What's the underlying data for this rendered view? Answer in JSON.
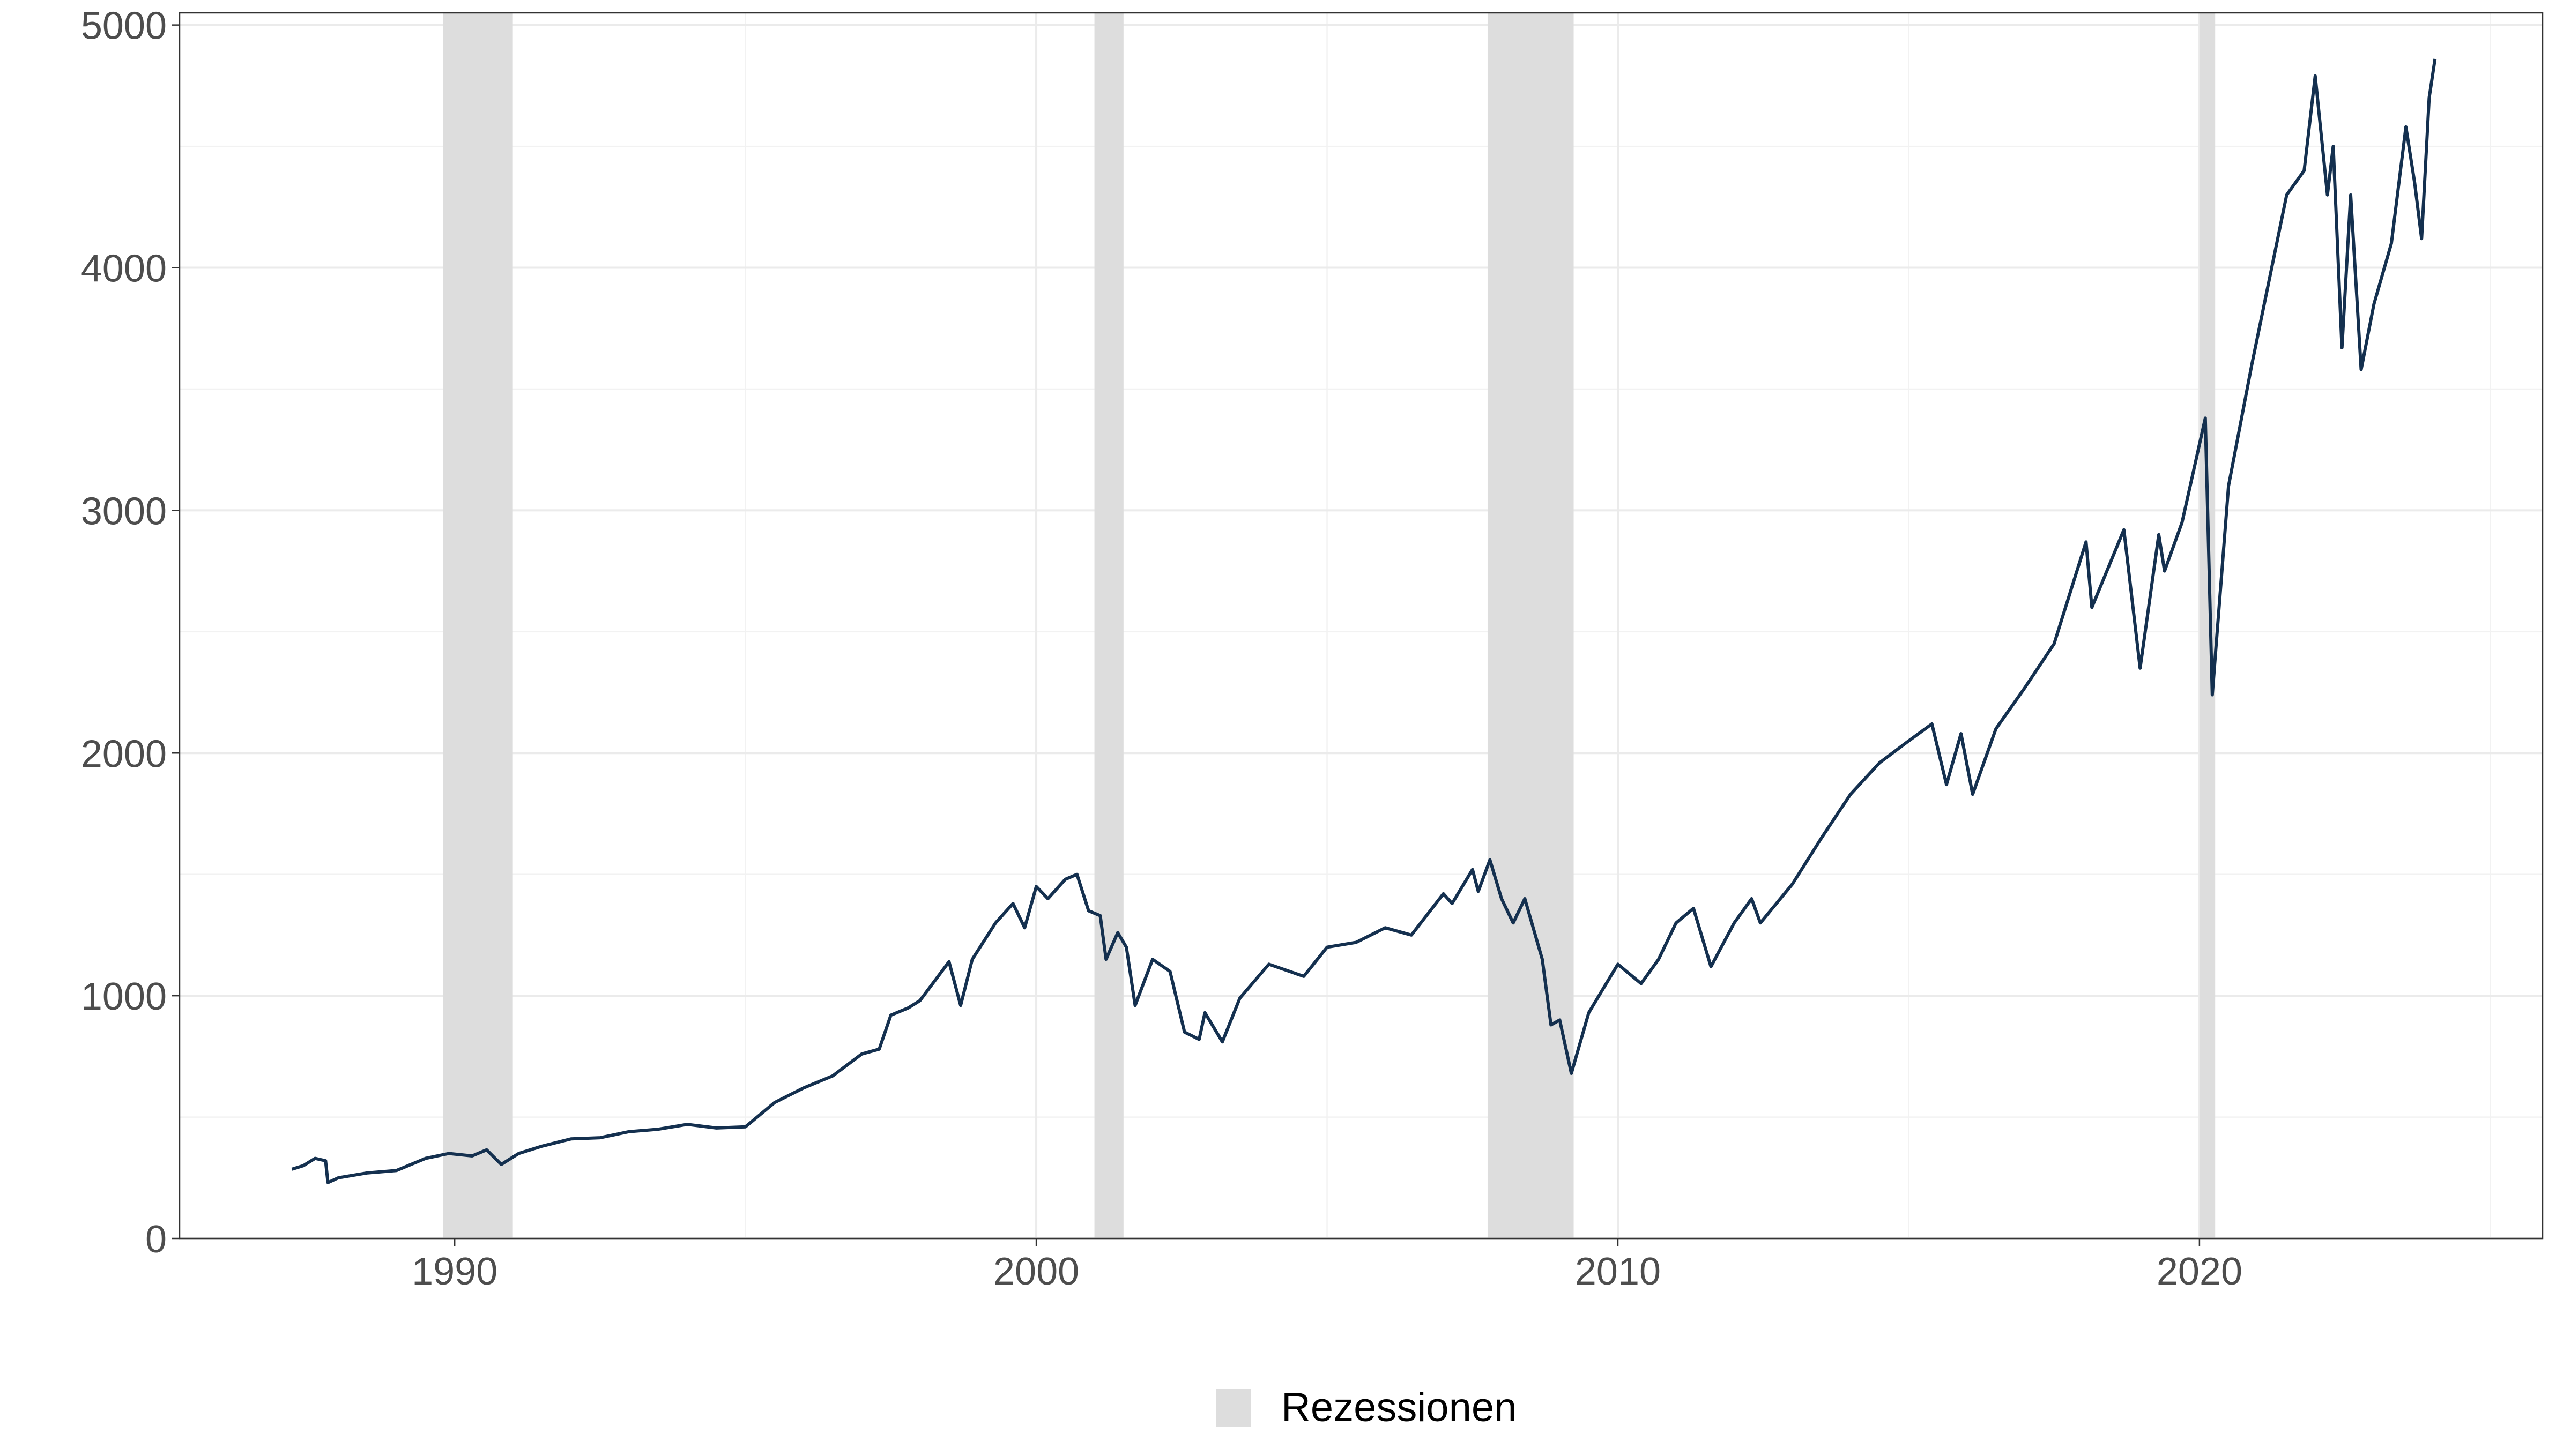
{
  "chart_data": {
    "type": "line",
    "title": "",
    "xlabel": "",
    "ylabel": "",
    "xlim": [
      1985.27,
      2025.9
    ],
    "ylim": [
      0,
      5050
    ],
    "x_ticks": [
      1990,
      2000,
      2010,
      2020
    ],
    "x_tick_labels": [
      "1990",
      "2000",
      "2010",
      "2020"
    ],
    "y_ticks": [
      0,
      1000,
      2000,
      3000,
      4000,
      5000
    ],
    "y_tick_labels": [
      "0",
      "1000",
      "2000",
      "3000",
      "4000",
      "5000"
    ],
    "grid": true,
    "legend_position": "bottom",
    "legend": [
      {
        "label": "Rezessionen",
        "color": "#dddddd"
      }
    ],
    "line_color": "#14304f",
    "recessions": [
      [
        1989.8,
        1991.0
      ],
      [
        2001.0,
        2001.5
      ],
      [
        2007.76,
        2009.24
      ],
      [
        2020.0,
        2020.27
      ]
    ],
    "series": [
      {
        "points": [
          [
            1987.2,
            285
          ],
          [
            1987.4,
            300
          ],
          [
            1987.6,
            330
          ],
          [
            1987.78,
            320
          ],
          [
            1987.82,
            230
          ],
          [
            1988.0,
            250
          ],
          [
            1988.5,
            270
          ],
          [
            1989.0,
            280
          ],
          [
            1989.5,
            330
          ],
          [
            1989.9,
            350
          ],
          [
            1990.3,
            340
          ],
          [
            1990.55,
            365
          ],
          [
            1990.8,
            305
          ],
          [
            1991.1,
            350
          ],
          [
            1991.5,
            380
          ],
          [
            1992.0,
            410
          ],
          [
            1992.5,
            415
          ],
          [
            1993.0,
            440
          ],
          [
            1993.5,
            450
          ],
          [
            1994.0,
            470
          ],
          [
            1994.5,
            455
          ],
          [
            1995.0,
            460
          ],
          [
            1995.5,
            560
          ],
          [
            1996.0,
            620
          ],
          [
            1996.5,
            670
          ],
          [
            1997.0,
            760
          ],
          [
            1997.3,
            780
          ],
          [
            1997.5,
            920
          ],
          [
            1997.8,
            950
          ],
          [
            1998.0,
            980
          ],
          [
            1998.5,
            1140
          ],
          [
            1998.7,
            960
          ],
          [
            1998.9,
            1150
          ],
          [
            1999.3,
            1300
          ],
          [
            1999.6,
            1380
          ],
          [
            1999.8,
            1280
          ],
          [
            2000.0,
            1450
          ],
          [
            2000.2,
            1400
          ],
          [
            2000.5,
            1480
          ],
          [
            2000.7,
            1500
          ],
          [
            2000.9,
            1350
          ],
          [
            2001.1,
            1330
          ],
          [
            2001.2,
            1150
          ],
          [
            2001.4,
            1260
          ],
          [
            2001.55,
            1200
          ],
          [
            2001.7,
            960
          ],
          [
            2002.0,
            1150
          ],
          [
            2002.3,
            1100
          ],
          [
            2002.55,
            850
          ],
          [
            2002.8,
            820
          ],
          [
            2002.9,
            930
          ],
          [
            2003.2,
            810
          ],
          [
            2003.5,
            990
          ],
          [
            2004.0,
            1130
          ],
          [
            2004.6,
            1080
          ],
          [
            2005.0,
            1200
          ],
          [
            2005.5,
            1220
          ],
          [
            2006.0,
            1280
          ],
          [
            2006.45,
            1250
          ],
          [
            2007.0,
            1420
          ],
          [
            2007.15,
            1380
          ],
          [
            2007.5,
            1520
          ],
          [
            2007.6,
            1430
          ],
          [
            2007.8,
            1560
          ],
          [
            2008.0,
            1400
          ],
          [
            2008.2,
            1300
          ],
          [
            2008.4,
            1400
          ],
          [
            2008.7,
            1150
          ],
          [
            2008.85,
            880
          ],
          [
            2009.0,
            900
          ],
          [
            2009.2,
            680
          ],
          [
            2009.5,
            930
          ],
          [
            2010.0,
            1130
          ],
          [
            2010.4,
            1050
          ],
          [
            2010.7,
            1150
          ],
          [
            2011.0,
            1300
          ],
          [
            2011.3,
            1360
          ],
          [
            2011.6,
            1120
          ],
          [
            2012.0,
            1300
          ],
          [
            2012.3,
            1400
          ],
          [
            2012.45,
            1300
          ],
          [
            2013.0,
            1460
          ],
          [
            2013.5,
            1650
          ],
          [
            2014.0,
            1830
          ],
          [
            2014.5,
            1960
          ],
          [
            2015.0,
            2050
          ],
          [
            2015.4,
            2120
          ],
          [
            2015.65,
            1870
          ],
          [
            2015.9,
            2080
          ],
          [
            2016.1,
            1830
          ],
          [
            2016.5,
            2100
          ],
          [
            2017.0,
            2270
          ],
          [
            2017.5,
            2450
          ],
          [
            2018.05,
            2870
          ],
          [
            2018.15,
            2600
          ],
          [
            2018.7,
            2920
          ],
          [
            2018.98,
            2350
          ],
          [
            2019.3,
            2900
          ],
          [
            2019.4,
            2750
          ],
          [
            2019.7,
            2950
          ],
          [
            2020.1,
            3380
          ],
          [
            2020.22,
            2240
          ],
          [
            2020.5,
            3100
          ],
          [
            2020.9,
            3600
          ],
          [
            2021.5,
            4300
          ],
          [
            2021.8,
            4400
          ],
          [
            2021.99,
            4790
          ],
          [
            2022.2,
            4300
          ],
          [
            2022.3,
            4500
          ],
          [
            2022.45,
            3670
          ],
          [
            2022.6,
            4300
          ],
          [
            2022.78,
            3580
          ],
          [
            2023.0,
            3850
          ],
          [
            2023.3,
            4100
          ],
          [
            2023.55,
            4580
          ],
          [
            2023.7,
            4350
          ],
          [
            2023.82,
            4120
          ],
          [
            2023.95,
            4700
          ],
          [
            2024.05,
            4860
          ]
        ]
      }
    ]
  }
}
